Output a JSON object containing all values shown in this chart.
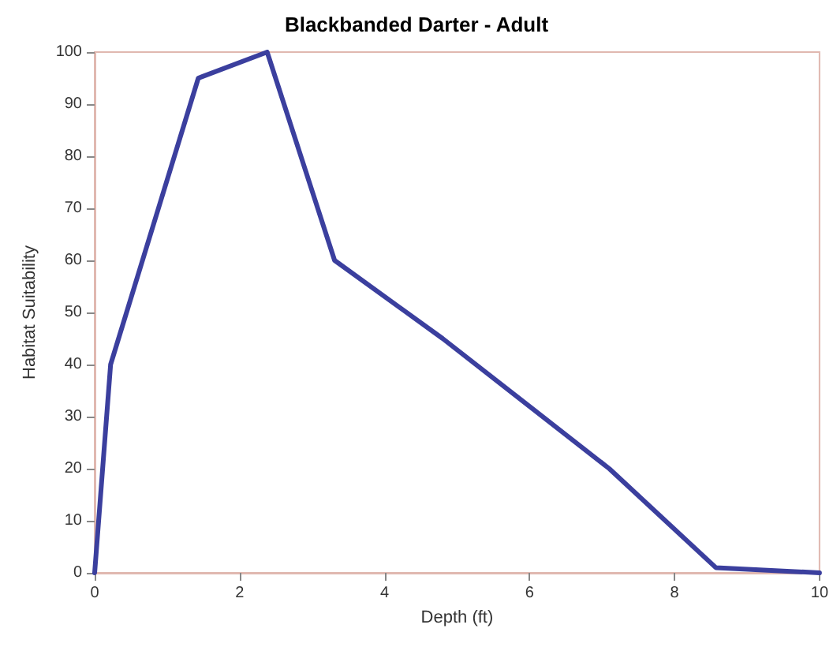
{
  "chart_data": {
    "type": "line",
    "title": "Blackbanded Darter - Adult",
    "xlabel": "Depth (ft)",
    "ylabel": "Habitat Suitability",
    "x": [
      0,
      0.22,
      1.43,
      2.38,
      3.31,
      4.8,
      7.1,
      8.57,
      10
    ],
    "series": [
      {
        "color": "#3b3f9e",
        "values": [
          0,
          40,
          95,
          100,
          60,
          45,
          20,
          1,
          0
        ]
      }
    ],
    "xlim": [
      0,
      10
    ],
    "xticks": [
      0,
      2,
      4,
      6,
      8,
      10
    ],
    "ylim": [
      0,
      100
    ],
    "yticks": [
      0,
      10,
      20,
      30,
      40,
      50,
      60,
      70,
      80,
      90,
      100
    ],
    "grid": false,
    "marker": "none",
    "line_style": "solid"
  }
}
